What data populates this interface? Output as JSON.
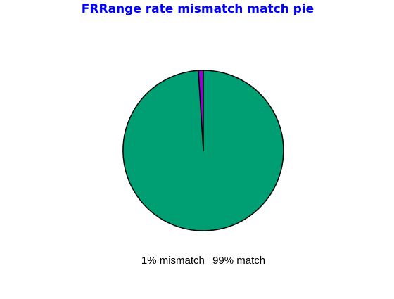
{
  "chart_data": {
    "type": "pie",
    "title": "FRRange rate mismatch match  pie",
    "slices": [
      {
        "label": "mismatch",
        "value": 1,
        "color": "#9400D3"
      },
      {
        "label": "match",
        "value": 99,
        "color": "#009E73"
      }
    ],
    "caption": [
      "1% mismatch",
      "99% match"
    ]
  },
  "colors": {
    "title": "#0000FF",
    "outline": "#000000",
    "caption": "#000000"
  }
}
